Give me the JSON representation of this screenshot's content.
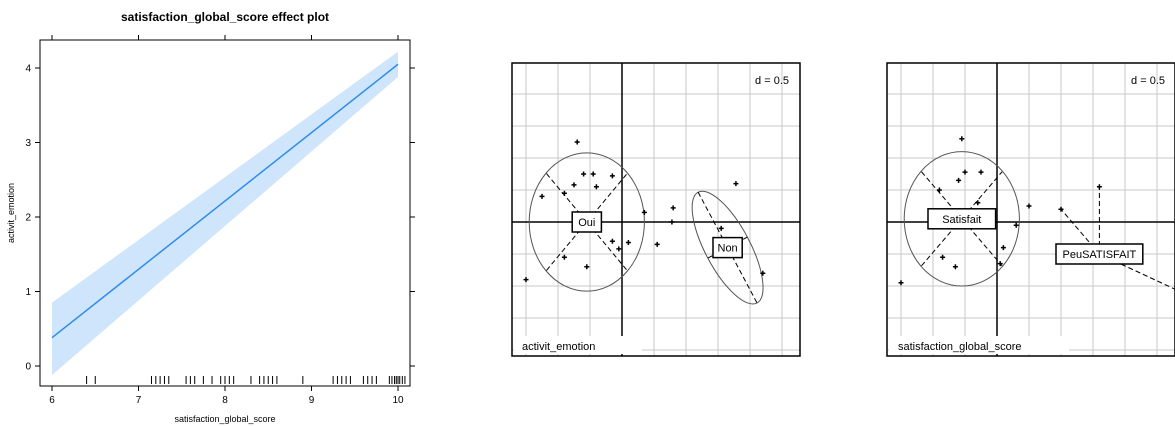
{
  "chart_data": [
    {
      "type": "line",
      "title": "satisfaction_global_score effect plot",
      "xlabel": "satisfaction_global_score",
      "ylabel": "activit_emotion",
      "xlim": [
        6,
        10
      ],
      "ylim": [
        0,
        4
      ],
      "xticks": [
        "6",
        "7",
        "8",
        "9",
        "10"
      ],
      "yticks": [
        "0",
        "1",
        "2",
        "3",
        "4"
      ],
      "series": [
        {
          "x": [
            6,
            10
          ],
          "y": [
            0.38,
            4.05
          ],
          "ci_lower": [
            -0.12,
            3.88
          ],
          "ci_upper": [
            0.85,
            4.22
          ]
        }
      ],
      "rug": [
        6.4,
        6.5,
        7.15,
        7.2,
        7.25,
        7.3,
        7.35,
        7.55,
        7.6,
        7.65,
        7.75,
        7.85,
        7.95,
        8.0,
        8.05,
        8.1,
        8.3,
        8.4,
        8.45,
        8.5,
        8.55,
        8.6,
        8.9,
        9.25,
        9.3,
        9.35,
        9.4,
        9.45,
        9.6,
        9.65,
        9.7,
        9.75,
        9.9,
        9.93,
        9.96,
        9.98,
        10.0,
        10.02,
        10.05,
        10.08
      ],
      "colors": {
        "line": "#2e8ce8",
        "band": "#cfe5fb",
        "rug": "#000000"
      }
    },
    {
      "type": "scatter",
      "panel_label": "activit_emotion",
      "d_label": "d = 0.5",
      "grid": true,
      "groups": [
        {
          "name": "Oui",
          "center": [
            -0.55,
            0.0
          ],
          "ellipse": {
            "rx": 0.9,
            "ry": 1.08,
            "angle": 0
          }
        },
        {
          "name": "Non",
          "center": [
            1.65,
            -0.4
          ],
          "ellipse": {
            "rx": 0.35,
            "ry": 0.98,
            "angle": -28
          }
        }
      ],
      "points": [
        [
          -0.7,
          1.25
        ],
        [
          -0.6,
          0.75
        ],
        [
          -0.45,
          0.75
        ],
        [
          -0.15,
          0.72
        ],
        [
          -0.75,
          0.58
        ],
        [
          -0.4,
          0.55
        ],
        [
          -0.9,
          0.45
        ],
        [
          -1.25,
          0.4
        ],
        [
          0.35,
          0.15
        ],
        [
          -0.15,
          -0.3
        ],
        [
          0.1,
          -0.32
        ],
        [
          0.8,
          0.22
        ],
        [
          0.78,
          0.0
        ],
        [
          0.55,
          -0.35
        ],
        [
          -0.05,
          -0.42
        ],
        [
          -0.9,
          -0.55
        ],
        [
          -0.55,
          -0.7
        ],
        [
          -1.5,
          -0.9
        ],
        [
          1.78,
          0.6
        ],
        [
          1.55,
          -0.1
        ],
        [
          2.2,
          -0.8
        ]
      ]
    },
    {
      "type": "scatter",
      "panel_label": "satisfaction_global_score",
      "d_label": "d = 0.5",
      "grid": true,
      "groups": [
        {
          "name": "Satisfait",
          "center": [
            -0.55,
            0.05
          ],
          "ellipse": {
            "rx": 0.9,
            "ry": 1.05,
            "angle": 0
          }
        },
        {
          "name": "PeuSATISFAIT",
          "center": [
            1.6,
            -0.5
          ],
          "ellipse": null
        }
      ],
      "points": [
        [
          -0.55,
          1.3
        ],
        [
          -0.5,
          0.78
        ],
        [
          -0.25,
          0.78
        ],
        [
          -0.6,
          0.65
        ],
        [
          -0.9,
          0.5
        ],
        [
          -0.3,
          0.3
        ],
        [
          0.5,
          0.25
        ],
        [
          -0.2,
          0.08
        ],
        [
          0.3,
          -0.05
        ],
        [
          0.1,
          -0.4
        ],
        [
          0.05,
          -0.65
        ],
        [
          -0.85,
          -0.55
        ],
        [
          -0.65,
          -0.7
        ],
        [
          -1.5,
          -0.95
        ],
        [
          1.6,
          0.55
        ],
        [
          1.0,
          0.2
        ]
      ]
    }
  ]
}
